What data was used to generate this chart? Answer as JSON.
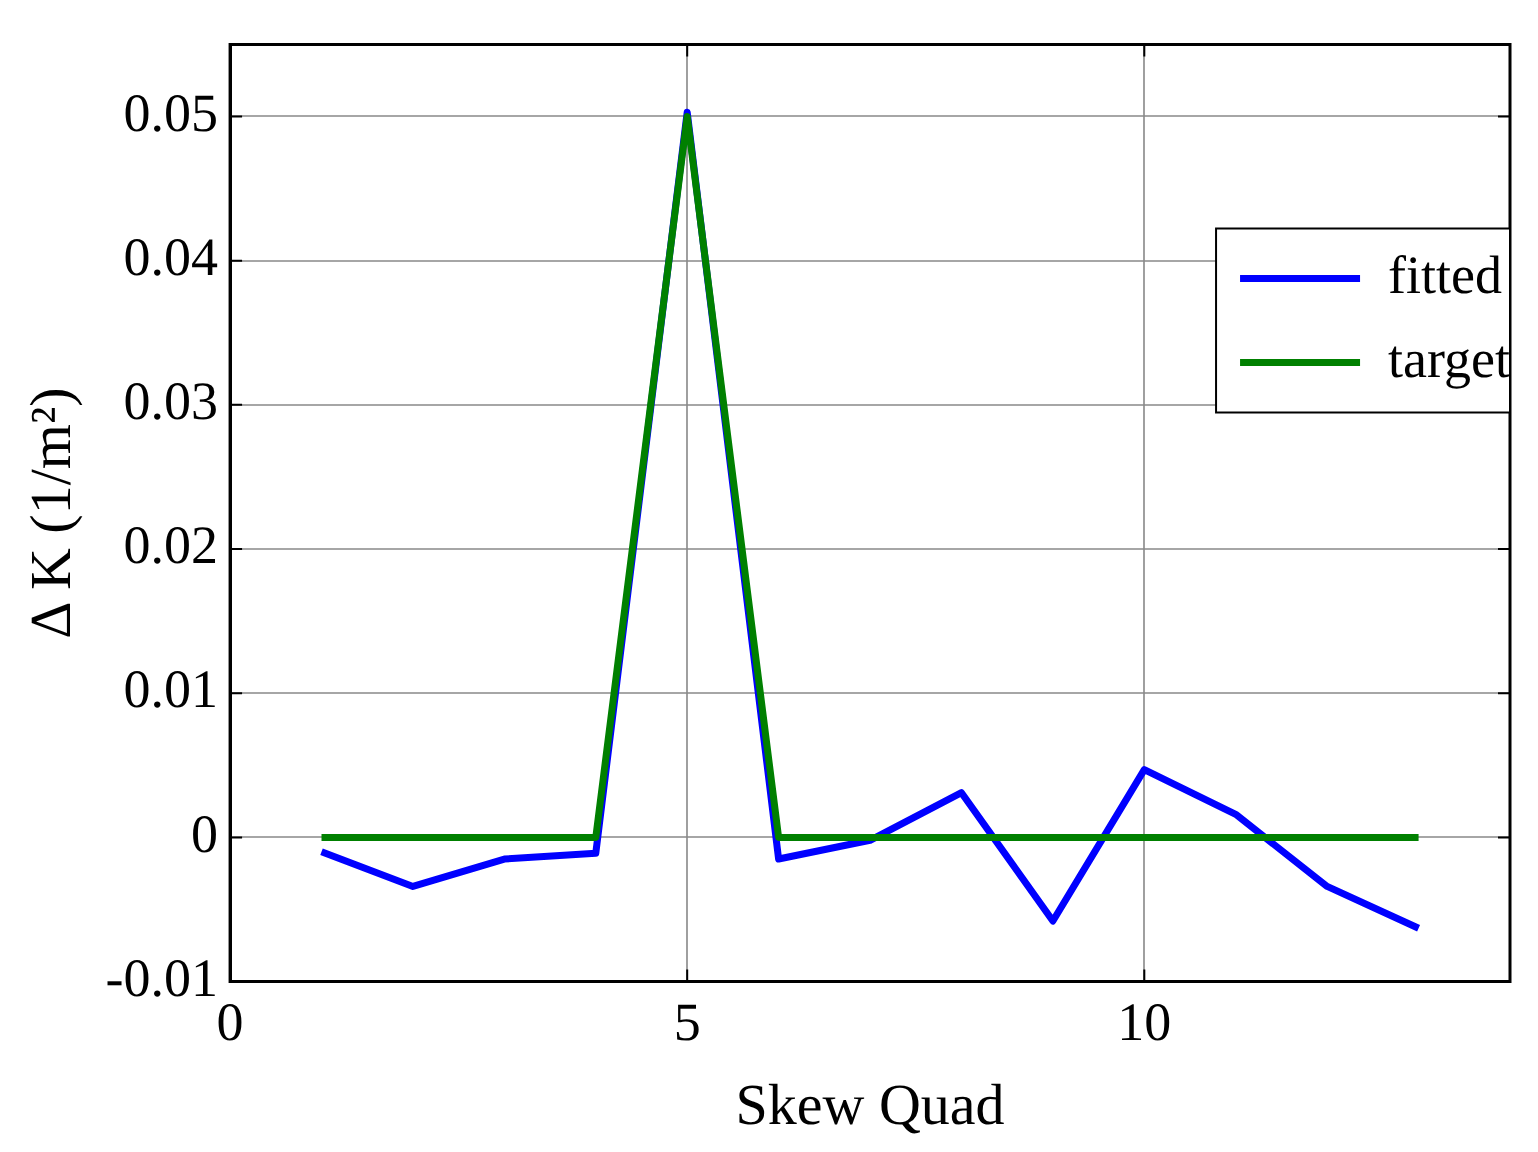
{
  "chart_data": {
    "type": "line",
    "xlabel": "Skew Quad",
    "ylabel": "Δ K (1/m²)",
    "x": [
      1,
      2,
      3,
      4,
      5,
      6,
      7,
      8,
      9,
      10,
      11,
      12,
      13
    ],
    "series": [
      {
        "name": "fitted",
        "color": "#0000ff",
        "values": [
          -0.001,
          -0.0034,
          -0.0015,
          -0.0011,
          0.0503,
          -0.0015,
          -0.0002,
          0.0031,
          -0.0058,
          0.0047,
          0.0016,
          -0.0034,
          -0.0063
        ]
      },
      {
        "name": "target",
        "color": "#008000",
        "values": [
          0,
          0,
          0,
          0,
          0.05,
          0,
          0,
          0,
          0,
          0,
          0,
          0,
          0
        ]
      }
    ],
    "xlim": [
      0,
      14
    ],
    "xticks": [
      0,
      5,
      10
    ],
    "ylim": [
      -0.01,
      0.055
    ],
    "yticks": [
      -0.01,
      0,
      0.01,
      0.02,
      0.03,
      0.04,
      0.05
    ],
    "grid": true,
    "legend": "top right",
    "marker": "none",
    "line_style": "solid"
  }
}
